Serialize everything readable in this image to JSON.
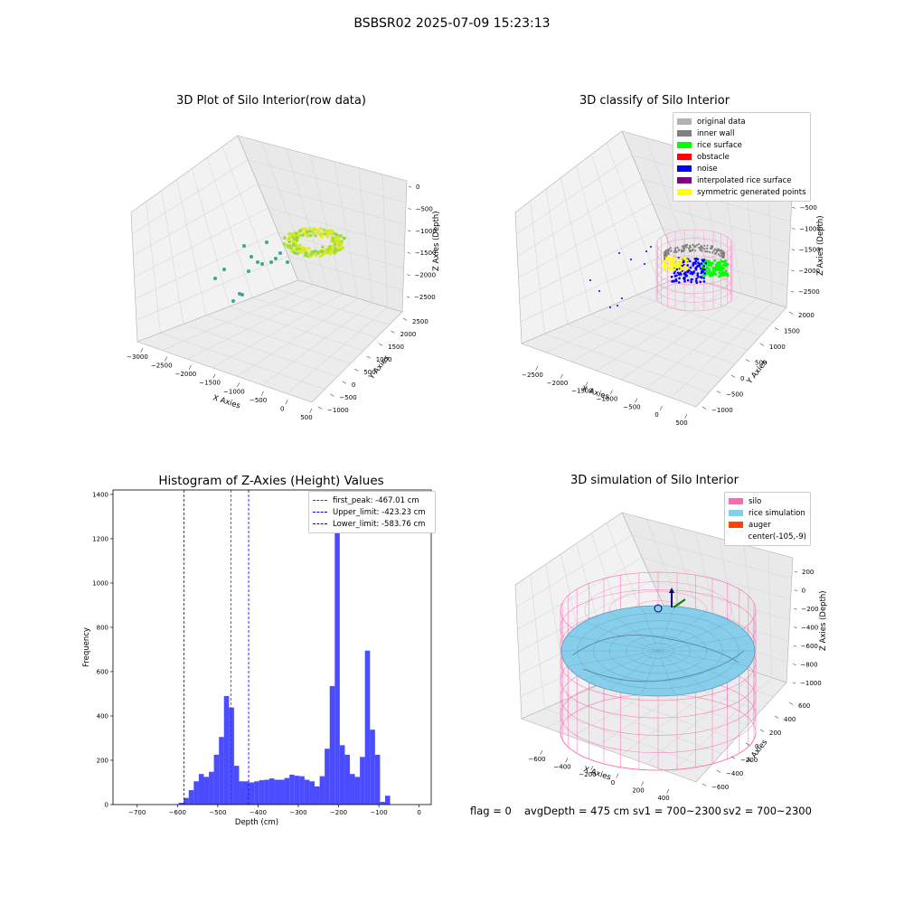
{
  "figure": {
    "suptitle": "BSBSR02 2025-07-09 15:23:13",
    "status": {
      "flag": "flag = 0",
      "avg_depth": "avgDepth = 475 cm",
      "sv1": "sv1 = 700~2300",
      "sv2": "sv2 = 700~2300"
    }
  },
  "panels": {
    "raw": {
      "title": "3D Plot of Silo Interior(row data)",
      "xlabel": "X Axies",
      "ylabel": "Y Axies",
      "zlabel": "Z Axies (Depth)",
      "xticks": [
        "−3000",
        "−2500",
        "−2000",
        "−1500",
        "−1000",
        "−500",
        "0",
        "500"
      ],
      "yticks": [
        "−1000",
        "−500",
        "0",
        "500",
        "1000",
        "1500",
        "2000",
        "2500"
      ],
      "zticks": [
        "0",
        "−500",
        "−1000",
        "−1500",
        "−2000",
        "−2500"
      ]
    },
    "classify": {
      "title": "3D classify of Silo Interior",
      "xlabel": "X Axies",
      "ylabel": "Y Axies",
      "zlabel": "Z Axies (Depth)",
      "xticks": [
        "−2500",
        "−2000",
        "−1500",
        "−1000",
        "−500",
        "0",
        "500"
      ],
      "yticks": [
        "−1000",
        "−500",
        "0",
        "500",
        "1000",
        "1500",
        "2000"
      ],
      "zticks": [
        "0",
        "−500",
        "−1000",
        "−1500",
        "−2000",
        "−2500"
      ],
      "legend": [
        {
          "label": "original data",
          "color": "#b3b3b3"
        },
        {
          "label": "inner wall",
          "color": "#808080"
        },
        {
          "label": "rice surface",
          "color": "#00ff00"
        },
        {
          "label": "obstacle",
          "color": "#ff0000"
        },
        {
          "label": "noise",
          "color": "#0000ff"
        },
        {
          "label": "interpolated rice surface",
          "color": "#800080"
        },
        {
          "label": "symmetric generated points",
          "color": "#ffff00"
        }
      ]
    },
    "simulation": {
      "title": "3D simulation of Silo Interior",
      "xlabel": "X Axies",
      "ylabel": "Y Axies",
      "zlabel": "Z Axies (Depth)",
      "xticks": [
        "−600",
        "−400",
        "−200",
        "0",
        "200",
        "400"
      ],
      "yticks": [
        "−600",
        "−400",
        "−200",
        "0",
        "200",
        "400",
        "600"
      ],
      "zticks": [
        "200",
        "0",
        "−200",
        "−400",
        "−600",
        "−800",
        "−1000"
      ],
      "legend": [
        {
          "label": "silo",
          "color": "#ff69b4"
        },
        {
          "label": "rice simulation",
          "color": "#87ceeb"
        },
        {
          "label": "auger",
          "color": "#ff4500"
        },
        {
          "label": "center(-105,-9)",
          "color": ""
        }
      ]
    }
  },
  "chart_data": {
    "type": "bar",
    "title": "Histogram of Z-Axies (Height) Values",
    "xlabel": "Depth (cm)",
    "ylabel": "Frequency",
    "xlim": [
      -760,
      30
    ],
    "ylim": [
      0,
      1420
    ],
    "bin_width": 12.5,
    "bar_color": "#0000ff",
    "xticks": [
      -700,
      -600,
      -500,
      -400,
      -300,
      -200,
      -100,
      0
    ],
    "xtick_labels": [
      "−700",
      "−600",
      "−500",
      "−400",
      "−300",
      "−200",
      "−100",
      "0"
    ],
    "yticks": [
      0,
      200,
      400,
      600,
      800,
      1000,
      1200,
      1400
    ],
    "bins": [
      {
        "x": -597,
        "value": 8
      },
      {
        "x": -584.5,
        "value": 30
      },
      {
        "x": -572,
        "value": 65
      },
      {
        "x": -559.5,
        "value": 105
      },
      {
        "x": -547,
        "value": 138
      },
      {
        "x": -534.5,
        "value": 125
      },
      {
        "x": -522,
        "value": 148
      },
      {
        "x": -509.5,
        "value": 225
      },
      {
        "x": -497,
        "value": 305
      },
      {
        "x": -484.5,
        "value": 490
      },
      {
        "x": -472,
        "value": 438
      },
      {
        "x": -459.5,
        "value": 175
      },
      {
        "x": -447,
        "value": 105
      },
      {
        "x": -434.5,
        "value": 105
      },
      {
        "x": -422,
        "value": 100
      },
      {
        "x": -409.5,
        "value": 105
      },
      {
        "x": -397,
        "value": 110
      },
      {
        "x": -384.5,
        "value": 112
      },
      {
        "x": -372,
        "value": 118
      },
      {
        "x": -359.5,
        "value": 112
      },
      {
        "x": -347,
        "value": 112
      },
      {
        "x": -334.5,
        "value": 120
      },
      {
        "x": -322,
        "value": 135
      },
      {
        "x": -309.5,
        "value": 130
      },
      {
        "x": -297,
        "value": 128
      },
      {
        "x": -284.5,
        "value": 112
      },
      {
        "x": -272,
        "value": 105
      },
      {
        "x": -259.5,
        "value": 82
      },
      {
        "x": -247,
        "value": 128
      },
      {
        "x": -234.5,
        "value": 252
      },
      {
        "x": -222,
        "value": 535
      },
      {
        "x": -209.5,
        "value": 1330
      },
      {
        "x": -197,
        "value": 268
      },
      {
        "x": -184.5,
        "value": 225
      },
      {
        "x": -172,
        "value": 138
      },
      {
        "x": -159.5,
        "value": 125
      },
      {
        "x": -147,
        "value": 215
      },
      {
        "x": -134.5,
        "value": 695
      },
      {
        "x": -122,
        "value": 338
      },
      {
        "x": -109.5,
        "value": 225
      },
      {
        "x": -97,
        "value": 12
      },
      {
        "x": -84.5,
        "value": 40
      }
    ],
    "vlines": [
      {
        "label": "first_peak: -467.01 cm",
        "x": -467.01,
        "color": "#ff0000"
      },
      {
        "label": "Upper_limit: -423.23 cm",
        "x": -423.23,
        "color": "#0000ff"
      },
      {
        "label": "Lower_limit: -583.76 cm",
        "x": -583.76,
        "color": "#0000ff"
      }
    ]
  }
}
